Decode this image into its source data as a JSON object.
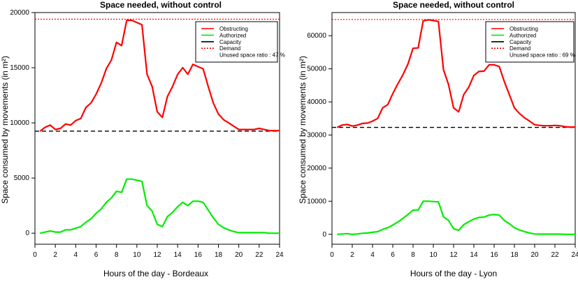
{
  "chart_data": [
    {
      "type": "line",
      "title": "Space needed, without control",
      "xlabel": "Hours of the day - Bordeaux",
      "ylabel": "Space consumed by movements (in m²)",
      "xlim": [
        0,
        24
      ],
      "ylim": [
        -1000,
        20000
      ],
      "x_ticks": [
        0,
        2,
        4,
        6,
        8,
        10,
        12,
        14,
        16,
        18,
        20,
        22,
        24
      ],
      "y_ticks": [
        0,
        5000,
        10000,
        15000,
        20000
      ],
      "capacity_level": 9250,
      "demand_level": 19400,
      "legend": {
        "position": "top-right",
        "entries": [
          "Obstructing",
          "Authorized",
          "Capacity",
          "Demand"
        ],
        "note": "Unused space ratio : 47 %"
      },
      "series": [
        {
          "name": "Obstructing",
          "color": "#ff0000",
          "x": [
            0.5,
            1,
            1.5,
            2,
            2.5,
            3,
            3.5,
            4,
            4.5,
            5,
            5.5,
            6,
            6.5,
            7,
            7.5,
            8,
            8.5,
            9,
            9.5,
            10,
            10.5,
            11,
            11.5,
            12,
            12.5,
            13,
            13.5,
            14,
            14.5,
            15,
            15.5,
            16,
            16.5,
            17,
            17.5,
            18,
            18.5,
            19,
            19.5,
            20,
            20.5,
            21,
            21.5,
            22,
            22.5,
            23,
            23.5,
            24
          ],
          "y": [
            9250,
            9600,
            9800,
            9400,
            9500,
            9900,
            9800,
            10200,
            10400,
            11400,
            11800,
            12600,
            13600,
            14900,
            15700,
            17300,
            17000,
            19300,
            19300,
            19100,
            18900,
            14400,
            13300,
            11000,
            10500,
            12400,
            13300,
            14400,
            15000,
            14400,
            15300,
            15100,
            14900,
            13300,
            11800,
            10800,
            10300,
            10000,
            9700,
            9400,
            9400,
            9400,
            9400,
            9500,
            9400,
            9300,
            9300,
            9300
          ]
        },
        {
          "name": "Authorized",
          "color": "#00ee00",
          "x": [
            0.5,
            1,
            1.5,
            2,
            2.5,
            3,
            3.5,
            4,
            4.5,
            5,
            5.5,
            6,
            6.5,
            7,
            7.5,
            8,
            8.5,
            9,
            9.5,
            10,
            10.5,
            11,
            11.5,
            12,
            12.5,
            13,
            13.5,
            14,
            14.5,
            15,
            15.5,
            16,
            16.5,
            17,
            17.5,
            18,
            18.5,
            19,
            19.5,
            20,
            20.5,
            21,
            21.5,
            22,
            22.5,
            23,
            23.5,
            24
          ],
          "y": [
            0,
            100,
            200,
            100,
            100,
            300,
            300,
            450,
            600,
            1000,
            1300,
            1800,
            2200,
            2800,
            3200,
            3800,
            3700,
            4900,
            4900,
            4800,
            4700,
            2500,
            2000,
            800,
            600,
            1500,
            1900,
            2400,
            2800,
            2500,
            2900,
            2900,
            2800,
            2100,
            1400,
            800,
            500,
            300,
            150,
            50,
            50,
            50,
            50,
            50,
            50,
            0,
            0,
            0
          ]
        }
      ]
    },
    {
      "type": "line",
      "title": "Space needed, without control",
      "xlabel": "Hours of the day - Lyon",
      "ylabel": "Space consumed by movements (in m²)",
      "xlim": [
        0,
        24
      ],
      "ylim": [
        -3000,
        67000
      ],
      "x_ticks": [
        0,
        2,
        4,
        6,
        8,
        10,
        12,
        14,
        16,
        18,
        20,
        22,
        24
      ],
      "y_ticks": [
        0,
        10000,
        20000,
        30000,
        40000,
        50000,
        60000
      ],
      "capacity_level": 32300,
      "demand_level": 64900,
      "legend": {
        "position": "top-right",
        "entries": [
          "Obstructing",
          "Authorized",
          "Capacity",
          "Demand"
        ],
        "note": "Unused space ratio : 69 %"
      },
      "series": [
        {
          "name": "Obstructing",
          "color": "#ff0000",
          "x": [
            0.5,
            1,
            1.5,
            2,
            2.5,
            3,
            3.5,
            4,
            4.5,
            5,
            5.5,
            6,
            6.5,
            7,
            7.5,
            8,
            8.5,
            9,
            9.5,
            10,
            10.5,
            11,
            11.5,
            12,
            12.5,
            13,
            13.5,
            14,
            14.5,
            15,
            15.5,
            16,
            16.5,
            17,
            17.5,
            18,
            18.5,
            19,
            19.5,
            20,
            20.5,
            21,
            21.5,
            22,
            22.5,
            23,
            23.5,
            24
          ],
          "y": [
            32300,
            33000,
            33200,
            32700,
            33000,
            33500,
            33600,
            34200,
            35000,
            38200,
            39200,
            42500,
            45500,
            48200,
            51500,
            56200,
            56300,
            64500,
            64800,
            64600,
            64300,
            49800,
            45200,
            38200,
            37000,
            42200,
            44500,
            48000,
            49200,
            49300,
            51200,
            51200,
            50700,
            46200,
            42200,
            38200,
            36500,
            35200,
            34200,
            33100,
            32900,
            32800,
            32800,
            32900,
            32800,
            32500,
            32400,
            32400
          ]
        },
        {
          "name": "Authorized",
          "color": "#00ee00",
          "x": [
            0.5,
            1,
            1.5,
            2,
            2.5,
            3,
            3.5,
            4,
            4.5,
            5,
            5.5,
            6,
            6.5,
            7,
            7.5,
            8,
            8.5,
            9,
            9.5,
            10,
            10.5,
            11,
            11.5,
            12,
            12.5,
            13,
            13.5,
            14,
            14.5,
            15,
            15.5,
            16,
            16.5,
            17,
            17.5,
            18,
            18.5,
            19,
            19.5,
            20,
            20.5,
            21,
            21.5,
            22,
            22.5,
            23,
            23.5,
            24
          ],
          "y": [
            0,
            100,
            200,
            0,
            100,
            300,
            400,
            600,
            800,
            1500,
            2000,
            2800,
            3700,
            4800,
            6000,
            7300,
            7300,
            10000,
            10000,
            9900,
            9800,
            5300,
            4200,
            1700,
            1200,
            2900,
            3800,
            4600,
            5100,
            5200,
            5800,
            6000,
            5800,
            4200,
            3200,
            2000,
            1300,
            800,
            400,
            100,
            50,
            50,
            50,
            50,
            50,
            0,
            0,
            0
          ]
        }
      ]
    }
  ]
}
